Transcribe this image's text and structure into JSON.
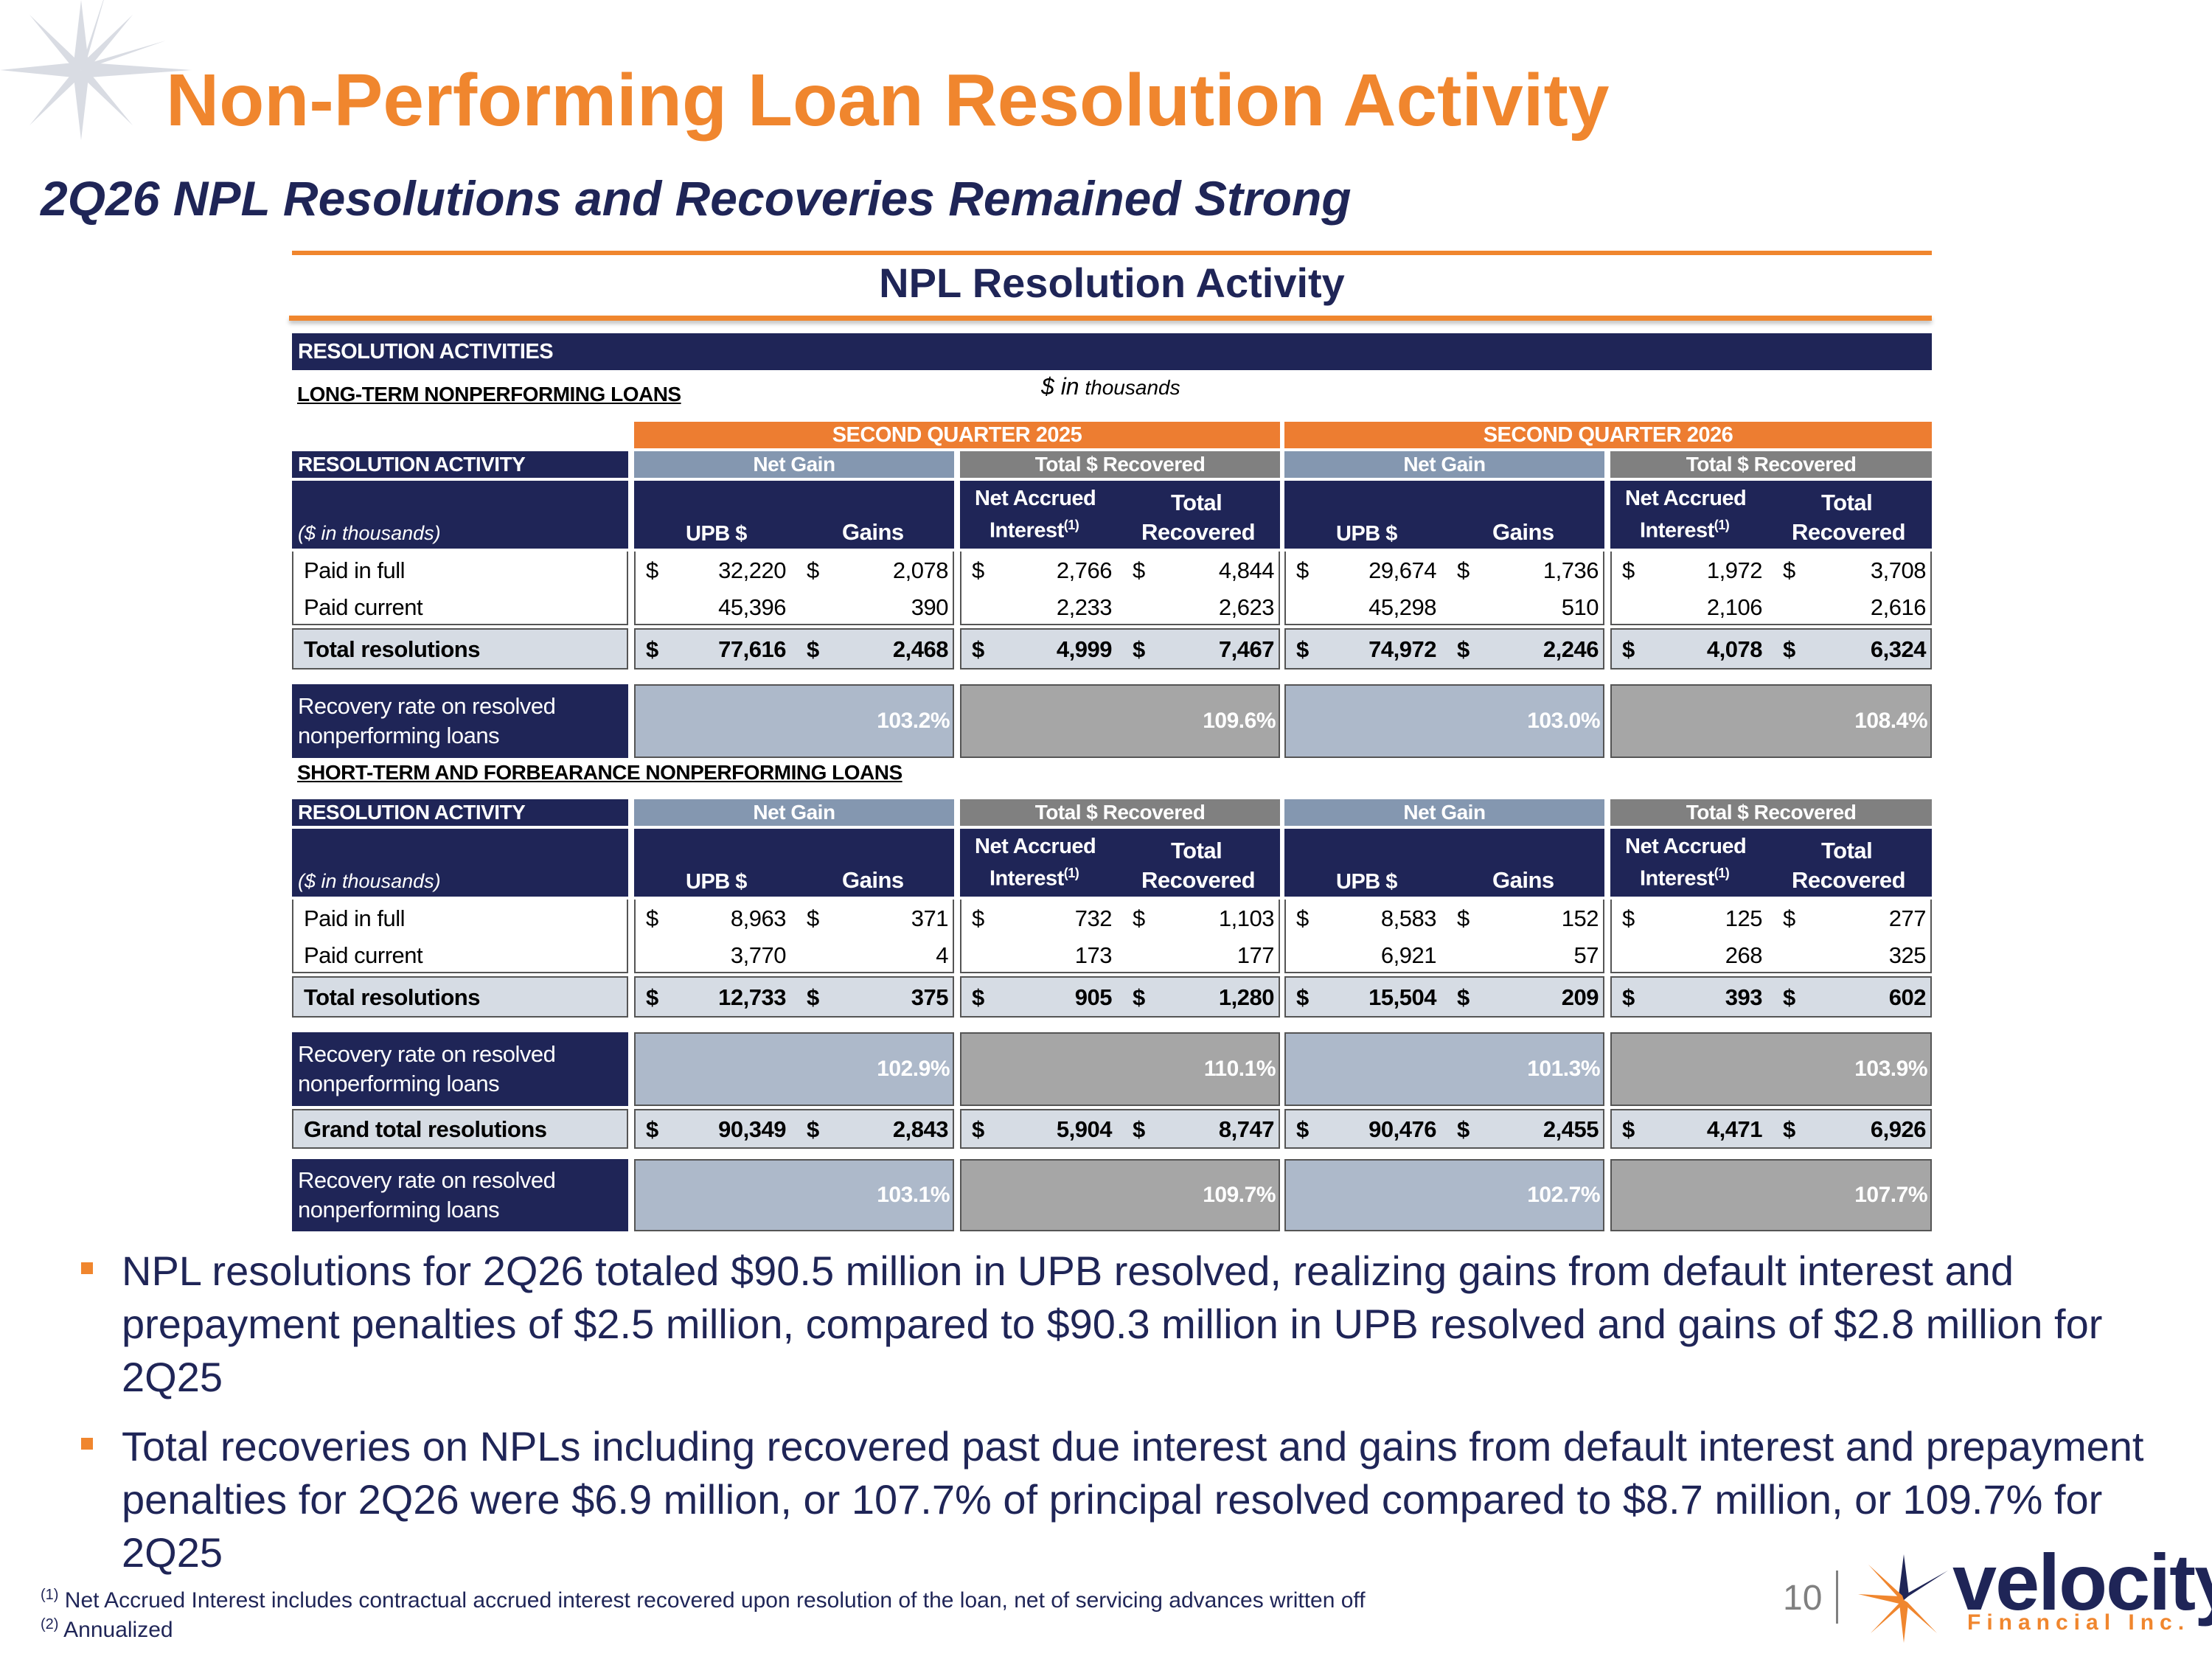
{
  "header": {
    "title": "Non-Performing Loan Resolution Activity",
    "subtitle": "2Q26 NPL Resolutions and Recoveries Remained Strong",
    "section_title": "NPL Resolution Activity"
  },
  "labels": {
    "resolution_activities": "RESOLUTION ACTIVITIES",
    "long_term": "LONG-TERM NONPERFORMING LOANS",
    "short_term": "SHORT-TERM AND FORBEARANCE NONPERFORMING LOANS",
    "units_big": "$ in",
    "units_small": " thousands",
    "q2025": "SECOND QUARTER 2025",
    "q2026": "SECOND QUARTER 2026",
    "resolution_activity": "RESOLUTION ACTIVITY",
    "net_gain": "Net Gain",
    "total_recovered_hdr": "Total $ Recovered",
    "in_thousands": "($ in thousands)",
    "upb": "UPB $",
    "gains": "Gains",
    "net_accrued": "Net Accrued",
    "interest": "Interest",
    "footnote_mark": "(1)",
    "total": "Total",
    "recovered": "Recovered",
    "dollar": "$",
    "rec_line1": "Recovery rate on resolved",
    "rec_line2": "nonperforming loans"
  },
  "long_term": {
    "rows": [
      {
        "label": "Paid in full",
        "v": [
          "32,220",
          "2,078",
          "2,766",
          "4,844",
          "29,674",
          "1,736",
          "1,972",
          "3,708"
        ],
        "dollar": true
      },
      {
        "label": "Paid current",
        "v": [
          "45,396",
          "390",
          "2,233",
          "2,623",
          "45,298",
          "510",
          "2,106",
          "2,616"
        ],
        "dollar": false
      }
    ],
    "total": {
      "label": "Total resolutions",
      "v": [
        "77,616",
        "2,468",
        "4,999",
        "7,467",
        "74,972",
        "2,246",
        "4,078",
        "6,324"
      ]
    },
    "recovery": [
      "103.2%",
      "109.6%",
      "103.0%",
      "108.4%"
    ]
  },
  "short_term": {
    "rows": [
      {
        "label": "Paid in full",
        "v": [
          "8,963",
          "371",
          "732",
          "1,103",
          "8,583",
          "152",
          "125",
          "277"
        ],
        "dollar": true
      },
      {
        "label": "Paid current",
        "v": [
          "3,770",
          "4",
          "173",
          "177",
          "6,921",
          "57",
          "268",
          "325"
        ],
        "dollar": false
      }
    ],
    "total": {
      "label": "Total resolutions",
      "v": [
        "12,733",
        "375",
        "905",
        "1,280",
        "15,504",
        "209",
        "393",
        "602"
      ]
    },
    "recovery": [
      "102.9%",
      "110.1%",
      "101.3%",
      "103.9%"
    ]
  },
  "grand": {
    "label": "Grand total resolutions",
    "v": [
      "90,349",
      "2,843",
      "5,904",
      "8,747",
      "90,476",
      "2,455",
      "4,471",
      "6,926"
    ],
    "recovery": [
      "103.1%",
      "109.7%",
      "102.7%",
      "107.7%"
    ]
  },
  "bullets": [
    "NPL resolutions for 2Q26 totaled $90.5 million in UPB resolved, realizing gains from default interest and prepayment penalties of $2.5 million, compared to $90.3 million in UPB resolved and gains of $2.8 million for 2Q25",
    "Total recoveries on NPLs including recovered past due interest and gains from default interest and prepayment penalties for 2Q26 were $6.9 million, or 107.7% of principal resolved compared to $8.7 million, or 109.7% for 2Q25"
  ],
  "footnotes": {
    "f1_mark": "(1)",
    "f1": " Net Accrued Interest includes contractual accrued interest recovered upon resolution of the loan, net of servicing advances written off",
    "f2_mark": "(2)",
    "f2": " Annualized"
  },
  "page_number": "10",
  "logo": {
    "name": "velocity",
    "sub": "Financial Inc."
  },
  "colors": {
    "orange": "#F0862E",
    "navy": "#1F2557",
    "slate": "#8497B0",
    "gray": "#808080"
  }
}
